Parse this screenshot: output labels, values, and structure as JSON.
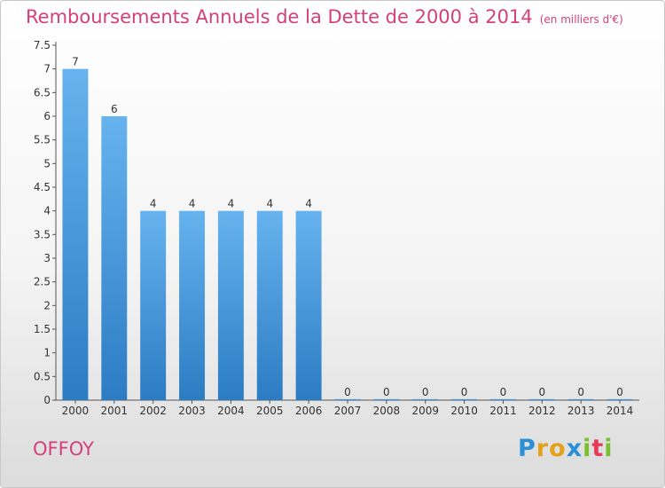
{
  "header": {
    "title": "Remboursements Annuels de la Dette de 2000 à 2014",
    "unit": "(en milliers d'€)"
  },
  "footer": {
    "commune": "OFFOY",
    "logo": {
      "letters": [
        "P",
        "r",
        "o",
        "x",
        "i",
        "t",
        "i"
      ],
      "colors": [
        "#2a8fd6",
        "#e3a21a",
        "#e3a21a",
        "#2a8fd6",
        "#7bbf2e",
        "#e63b5a",
        "#7bbf2e"
      ]
    }
  },
  "chart_data": {
    "type": "bar",
    "categories": [
      "2000",
      "2001",
      "2002",
      "2003",
      "2004",
      "2005",
      "2006",
      "2007",
      "2008",
      "2009",
      "2010",
      "2011",
      "2012",
      "2013",
      "2014"
    ],
    "values": [
      7,
      6,
      4,
      4,
      4,
      4,
      4,
      0,
      0,
      0,
      0,
      0,
      0,
      0,
      0
    ],
    "data_labels": [
      "7",
      "6",
      "4",
      "4",
      "4",
      "4",
      "4",
      "0",
      "0",
      "0",
      "0",
      "0",
      "0",
      "0",
      "0"
    ],
    "yticks": [
      "0",
      "0.5",
      "1",
      "1.5",
      "2",
      "2.5",
      "3",
      "3.5",
      "4",
      "4.5",
      "5",
      "5.5",
      "6",
      "6.5",
      "7",
      "7.5"
    ],
    "ylim": [
      0,
      7.5
    ],
    "grid": false,
    "bar_color_top": "#66b3ee",
    "bar_color_bottom": "#2b7cc3"
  }
}
